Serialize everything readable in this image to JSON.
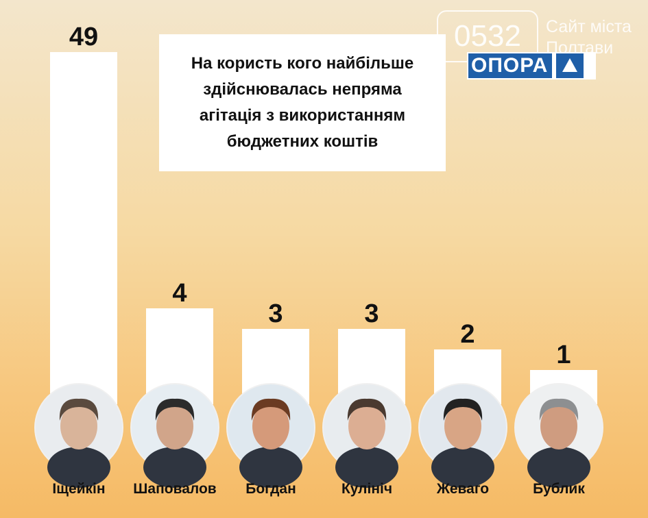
{
  "watermark": {
    "number": "0532",
    "text_line1": "Сайт міста",
    "text_line2": "Полтави"
  },
  "logo": {
    "text": "ОПОРА",
    "color": "#1f5fa8"
  },
  "chart_data": {
    "type": "bar",
    "title_lines": [
      "На користь кого найбільше",
      "здійснювалась непряма",
      "агітація з використанням",
      "бюджетних коштів"
    ],
    "categories": [
      "Іщейкін",
      "Шаповалов",
      "Богдан",
      "Кулініч",
      "Жеваго",
      "Бублик"
    ],
    "values": [
      49,
      4,
      3,
      3,
      2,
      1
    ],
    "xlabel": "",
    "ylabel": "",
    "grid": false,
    "bar_color": "#ffffff"
  }
}
